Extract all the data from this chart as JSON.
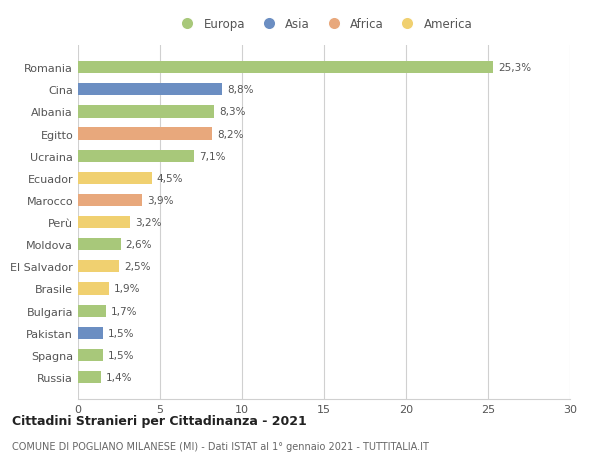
{
  "countries": [
    "Romania",
    "Cina",
    "Albania",
    "Egitto",
    "Ucraina",
    "Ecuador",
    "Marocco",
    "Perù",
    "Moldova",
    "El Salvador",
    "Brasile",
    "Bulgaria",
    "Pakistan",
    "Spagna",
    "Russia"
  ],
  "values": [
    25.3,
    8.8,
    8.3,
    8.2,
    7.1,
    4.5,
    3.9,
    3.2,
    2.6,
    2.5,
    1.9,
    1.7,
    1.5,
    1.5,
    1.4
  ],
  "labels": [
    "25,3%",
    "8,8%",
    "8,3%",
    "8,2%",
    "7,1%",
    "4,5%",
    "3,9%",
    "3,2%",
    "2,6%",
    "2,5%",
    "1,9%",
    "1,7%",
    "1,5%",
    "1,5%",
    "1,4%"
  ],
  "continents": [
    "Europa",
    "Asia",
    "Europa",
    "Africa",
    "Europa",
    "America",
    "Africa",
    "America",
    "Europa",
    "America",
    "America",
    "Europa",
    "Asia",
    "Europa",
    "Europa"
  ],
  "continent_colors": {
    "Europa": "#a8c87a",
    "Asia": "#6b8ec2",
    "Africa": "#e8a87c",
    "America": "#f0d070"
  },
  "legend_order": [
    "Europa",
    "Asia",
    "Africa",
    "America"
  ],
  "xlim": [
    0,
    30
  ],
  "xticks": [
    0,
    5,
    10,
    15,
    20,
    25,
    30
  ],
  "title": "Cittadini Stranieri per Cittadinanza - 2021",
  "subtitle": "COMUNE DI POGLIANO MILANESE (MI) - Dati ISTAT al 1° gennaio 2021 - TUTTITALIA.IT",
  "background_color": "#ffffff",
  "bar_height": 0.55,
  "grid_color": "#d0d0d0"
}
